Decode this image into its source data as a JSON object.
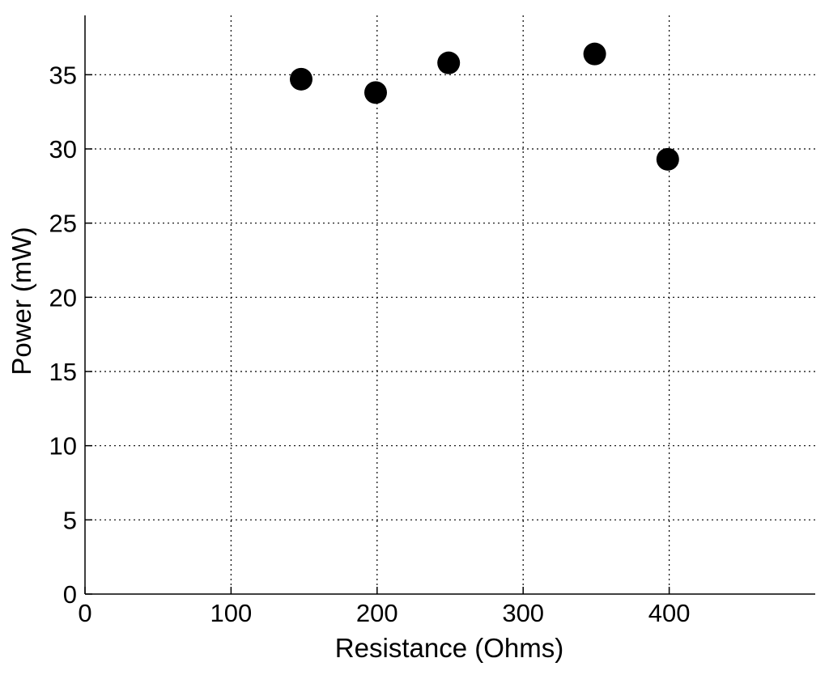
{
  "chart_data": {
    "type": "scatter",
    "xlabel": "Resistance (Ohms)",
    "ylabel": "Power (mW)",
    "xlim": [
      0,
      500
    ],
    "ylim": [
      0,
      39
    ],
    "x_ticks": [
      0,
      100,
      200,
      300,
      400
    ],
    "y_ticks": [
      0,
      5,
      10,
      15,
      20,
      25,
      30,
      35
    ],
    "grid": true,
    "points": [
      {
        "x": 148,
        "y": 34.7
      },
      {
        "x": 199,
        "y": 33.8
      },
      {
        "x": 249,
        "y": 35.8
      },
      {
        "x": 349,
        "y": 36.4
      },
      {
        "x": 399,
        "y": 29.3
      }
    ],
    "marker_color": "#000000"
  }
}
